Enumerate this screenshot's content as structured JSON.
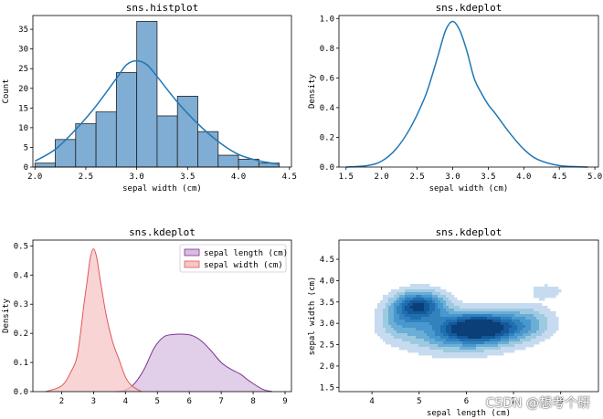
{
  "watermark": "CSDN @想考个研",
  "colors": {
    "blue": "#1f77b4",
    "bar_fill": "#7fadd3",
    "purple": "#7b3294",
    "purple_fill": "#d7bde2",
    "red": "#e15759",
    "red_fill": "#f7c6c7",
    "contour": [
      "#c6dbef",
      "#9ecae1",
      "#6baed6",
      "#4a98d0",
      "#3182bd",
      "#1f6eb0",
      "#15589a",
      "#0b3f78"
    ]
  },
  "chart_data": [
    {
      "type": "bar",
      "title": "sns.histplot",
      "xlabel": "sepal width (cm)",
      "ylabel": "Count",
      "xlim": [
        1.98,
        4.52
      ],
      "ylim": [
        0,
        38.5
      ],
      "xticks": [
        "2.0",
        "2.5",
        "3.0",
        "3.5",
        "4.0",
        "4.5"
      ],
      "yticks": [
        "0",
        "5",
        "10",
        "15",
        "20",
        "25",
        "30",
        "35"
      ],
      "bin_edges": [
        2.0,
        2.2,
        2.4,
        2.6,
        2.8,
        3.0,
        3.2,
        3.4,
        3.6,
        3.8,
        4.0,
        4.2,
        4.4
      ],
      "values": [
        1,
        7,
        11,
        14,
        24,
        37,
        13,
        18,
        9,
        3,
        2,
        1
      ],
      "kde_x": [
        2.0,
        2.2,
        2.4,
        2.6,
        2.8,
        2.9,
        3.0,
        3.1,
        3.2,
        3.4,
        3.6,
        3.8,
        4.0,
        4.2,
        4.4
      ],
      "kde_y": [
        1.5,
        4.5,
        9.5,
        15.5,
        22.5,
        26,
        27,
        26,
        23,
        16.5,
        11,
        6.5,
        3.2,
        1.6,
        0.7
      ]
    },
    {
      "type": "line",
      "title": "sns.kdeplot",
      "xlabel": "sepal width (cm)",
      "ylabel": "Density",
      "xlim": [
        1.4,
        5.05
      ],
      "ylim": [
        0,
        1.02
      ],
      "xticks": [
        "1.5",
        "2.0",
        "2.5",
        "3.0",
        "3.5",
        "4.0",
        "4.5",
        "5.0"
      ],
      "yticks": [
        "0.0",
        "0.2",
        "0.4",
        "0.6",
        "0.8",
        "1.0"
      ],
      "x": [
        1.5,
        1.8,
        2.0,
        2.2,
        2.4,
        2.6,
        2.7,
        2.8,
        2.9,
        3.0,
        3.1,
        3.2,
        3.3,
        3.4,
        3.5,
        3.6,
        3.8,
        4.0,
        4.2,
        4.5,
        4.9
      ],
      "y": [
        0.0,
        0.01,
        0.04,
        0.12,
        0.26,
        0.46,
        0.6,
        0.76,
        0.92,
        0.98,
        0.92,
        0.78,
        0.6,
        0.5,
        0.42,
        0.36,
        0.23,
        0.12,
        0.05,
        0.01,
        0.0
      ]
    },
    {
      "type": "area",
      "title": "sns.kdeplot",
      "xlabel": "",
      "ylabel": "Density",
      "xlim": [
        1.1,
        9.2
      ],
      "ylim": [
        0,
        0.52
      ],
      "xticks": [
        "2",
        "3",
        "4",
        "5",
        "6",
        "7",
        "8",
        "9"
      ],
      "yticks": [
        "0.0",
        "0.1",
        "0.2",
        "0.3",
        "0.4",
        "0.5"
      ],
      "legend": "top-right",
      "series": [
        {
          "name": "sepal length (cm)",
          "x": [
            3.7,
            4.0,
            4.3,
            4.6,
            4.9,
            5.2,
            5.5,
            5.8,
            6.1,
            6.4,
            6.7,
            7.0,
            7.3,
            7.6,
            7.9,
            8.3,
            8.6
          ],
          "y": [
            0.0,
            0.005,
            0.03,
            0.08,
            0.15,
            0.188,
            0.196,
            0.197,
            0.192,
            0.172,
            0.138,
            0.1,
            0.077,
            0.06,
            0.035,
            0.008,
            0.0
          ]
        },
        {
          "name": "sepal width (cm)",
          "x": [
            1.5,
            2.0,
            2.3,
            2.5,
            2.7,
            2.8,
            2.9,
            3.0,
            3.1,
            3.2,
            3.4,
            3.6,
            3.8,
            4.0,
            4.2,
            4.5
          ],
          "y": [
            0.0,
            0.02,
            0.07,
            0.13,
            0.3,
            0.38,
            0.46,
            0.49,
            0.46,
            0.39,
            0.26,
            0.17,
            0.11,
            0.05,
            0.02,
            0.0
          ]
        }
      ]
    },
    {
      "type": "heatmap",
      "title": "sns.kdeplot",
      "xlabel": "sepal length (cm)",
      "ylabel": "sepal width (cm)",
      "xlim": [
        3.3,
        8.8
      ],
      "ylim": [
        1.4,
        4.95
      ],
      "xticks": [
        "4",
        "5",
        "6",
        "7",
        "8"
      ],
      "yticks": [
        "1.5",
        "2.0",
        "2.5",
        "3.0",
        "3.5",
        "4.0",
        "4.5"
      ],
      "peaks": [
        {
          "x": 5.0,
          "y": 3.4,
          "sx": 0.35,
          "sy": 0.22,
          "w": 0.85
        },
        {
          "x": 6.3,
          "y": 2.9,
          "sx": 0.55,
          "sy": 0.22,
          "w": 1.0
        },
        {
          "x": 5.8,
          "y": 2.75,
          "sx": 0.75,
          "sy": 0.3,
          "w": 0.35
        },
        {
          "x": 7.3,
          "y": 3.05,
          "sx": 0.38,
          "sy": 0.25,
          "w": 0.22
        },
        {
          "x": 7.7,
          "y": 3.75,
          "sx": 0.28,
          "sy": 0.14,
          "w": 0.1
        },
        {
          "x": 4.6,
          "y": 3.05,
          "sx": 0.3,
          "sy": 0.25,
          "w": 0.25
        }
      ],
      "levels": [
        0.06,
        0.15,
        0.25,
        0.36,
        0.48,
        0.6,
        0.72,
        0.85
      ]
    }
  ]
}
